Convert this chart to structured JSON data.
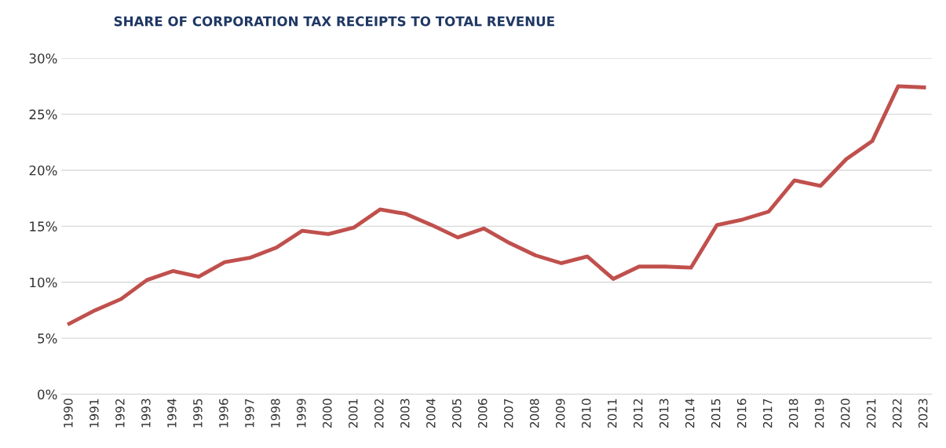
{
  "chart_data": {
    "type": "line",
    "title": "SHARE OF CORPORATION TAX RECEIPTS TO TOTAL REVENUE",
    "categories": [
      "1990",
      "1991",
      "1992",
      "1993",
      "1994",
      "1995",
      "1996",
      "1997",
      "1998",
      "1999",
      "2000",
      "2001",
      "2002",
      "2003",
      "2004",
      "2005",
      "2006",
      "2007",
      "2008",
      "2009",
      "2010",
      "2011",
      "2012",
      "2013",
      "2014",
      "2015",
      "2016",
      "2017",
      "2018",
      "2019",
      "2020",
      "2021",
      "2022",
      "2023"
    ],
    "series": [
      {
        "color": "#c0504d",
        "values": [
          6.3,
          7.5,
          8.5,
          10.2,
          11.0,
          10.5,
          11.8,
          12.2,
          13.1,
          14.6,
          14.3,
          14.9,
          16.5,
          16.1,
          15.1,
          14.0,
          14.8,
          13.5,
          12.4,
          11.7,
          12.3,
          10.3,
          11.4,
          11.4,
          11.3,
          15.1,
          15.6,
          16.3,
          19.1,
          18.6,
          21.0,
          22.6,
          27.5,
          27.4
        ]
      }
    ],
    "ylim": [
      0,
      30
    ],
    "yticks": [
      {
        "value": 0,
        "label": "0%"
      },
      {
        "value": 5,
        "label": "5%"
      },
      {
        "value": 10,
        "label": "10%"
      },
      {
        "value": 15,
        "label": "15%"
      },
      {
        "value": 20,
        "label": "20%"
      },
      {
        "value": 25,
        "label": "25%"
      },
      {
        "value": 30,
        "label": "30%"
      }
    ],
    "grid": "y",
    "marker": "none",
    "line_style": "solid"
  }
}
